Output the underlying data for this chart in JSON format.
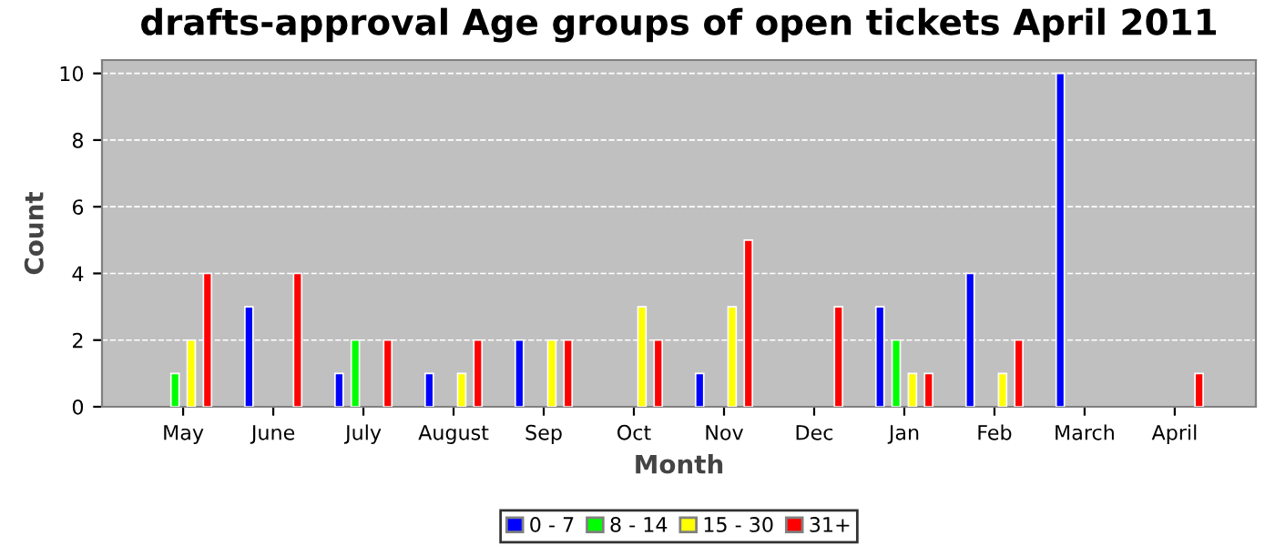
{
  "chart_data": {
    "type": "bar",
    "title": "drafts-approval Age groups of open tickets April 2011",
    "xlabel": "Month",
    "ylabel": "Count",
    "categories": [
      "May",
      "June",
      "July",
      "August",
      "Sep",
      "Oct",
      "Nov",
      "Dec",
      "Jan",
      "Feb",
      "March",
      "April"
    ],
    "series": [
      {
        "name": "0 - 7",
        "color": "#0000ff",
        "values": [
          0,
          3,
          1,
          1,
          2,
          0,
          1,
          0,
          3,
          4,
          10,
          0
        ]
      },
      {
        "name": "8 - 14",
        "color": "#00ff00",
        "values": [
          1,
          0,
          2,
          0,
          0,
          0,
          0,
          0,
          2,
          0,
          0,
          0
        ]
      },
      {
        "name": "15 - 30",
        "color": "#ffff00",
        "values": [
          2,
          0,
          0,
          1,
          2,
          3,
          3,
          0,
          1,
          1,
          0,
          0
        ]
      },
      {
        "name": "31+",
        "color": "#ff0000",
        "values": [
          4,
          4,
          2,
          2,
          2,
          2,
          5,
          3,
          1,
          2,
          0,
          1
        ]
      }
    ],
    "ylim": [
      0,
      10.4
    ],
    "yticks": [
      0,
      2,
      4,
      6,
      8,
      10
    ],
    "grid": "y",
    "legend": "bottom"
  }
}
